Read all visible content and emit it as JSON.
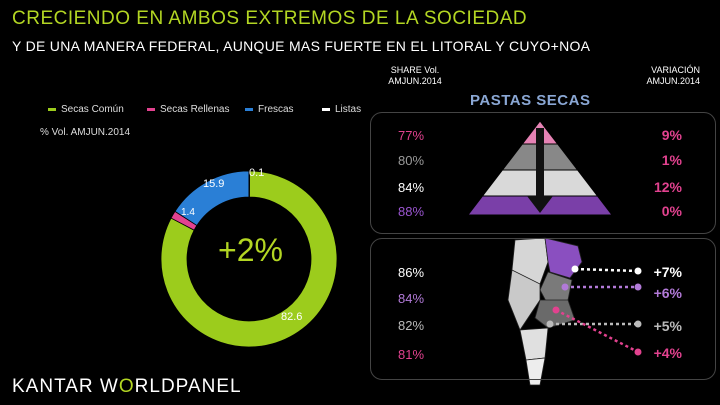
{
  "title": "CRECIENDO EN AMBOS EXTREMOS DE LA SOCIEDAD",
  "subtitle": "Y DE UNA MANERA FEDERAL, AUNQUE MAS FUERTE EN EL LITORAL Y CUYO+NOA",
  "share_header": "SHARE Vol. AMJUN.2014",
  "variation_header": "VARIACIÓN AMJUN.2014",
  "pastas_title": "PASTAS SECAS",
  "unit_label": "% Vol. AMJUN.2014",
  "donut_total_change": "+2%",
  "logo": {
    "part1": "KANTAR W",
    "part2": "RLDPANEL"
  },
  "colors": {
    "green": "#9ccc1c",
    "pink": "#e2428f",
    "blue": "#2a7fd6",
    "gray": "#bcbcbc",
    "purple": "#7a3fa8",
    "dark_gray": "#8c8c8c"
  },
  "chart_data": [
    {
      "type": "pie",
      "variant": "donut",
      "series": [
        {
          "name": "Secas Común",
          "value": 82.6,
          "label": "82.6",
          "color": "#9ccc1c"
        },
        {
          "name": "Secas Rellenas",
          "value": 1.4,
          "label": "1.4",
          "color": "#e2428f"
        },
        {
          "name": "Frescas",
          "value": 15.9,
          "label": "15.9",
          "color": "#2a7fd6"
        },
        {
          "name": "Listas",
          "value": 0.1,
          "label": "0.1",
          "color": "#ffffff"
        }
      ],
      "center_label": "+2%"
    },
    {
      "type": "table",
      "name": "socioeconomic_pyramid",
      "rows": [
        {
          "share": "77%",
          "variation": "9%",
          "color": "#e683b5",
          "var_color": "#e2428f"
        },
        {
          "share": "80%",
          "variation": "1%",
          "color": "#888888",
          "var_color": "#e2428f"
        },
        {
          "share": "84%",
          "variation": "12%",
          "color": "#d9d9d9",
          "var_color": "#e2428f"
        },
        {
          "share": "88%",
          "variation": "0%",
          "color": "#7a3fa8",
          "var_color": "#e2428f"
        }
      ]
    },
    {
      "type": "table",
      "name": "regions",
      "rows": [
        {
          "share": "86%",
          "variation": "+7%",
          "color": "#ffffff"
        },
        {
          "share": "84%",
          "variation": "+6%",
          "color": "#b27ad8"
        },
        {
          "share": "82%",
          "variation": "+5%",
          "color": "#bbbbbb"
        },
        {
          "share": "81%",
          "variation": "+4%",
          "color": "#e2428f"
        }
      ]
    }
  ]
}
